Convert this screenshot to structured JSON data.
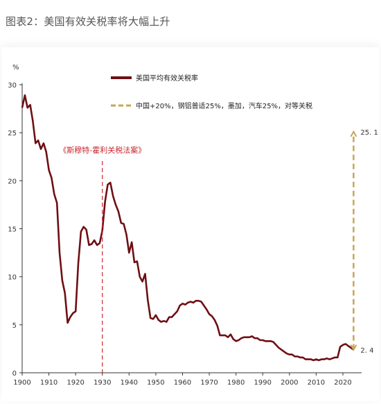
{
  "caption": "图表2：美国有效关税率将大幅上升",
  "chart_data": {
    "type": "line",
    "ylabel": "%",
    "xlim": [
      1900,
      2027
    ],
    "ylim": [
      0,
      30
    ],
    "x_ticks": [
      1900,
      1910,
      1920,
      1930,
      1940,
      1950,
      1960,
      1970,
      1980,
      1990,
      2000,
      2010,
      2020
    ],
    "y_ticks": [
      0,
      5,
      10,
      15,
      20,
      25,
      30
    ],
    "grid": false,
    "legend_position": "top-center",
    "series": [
      {
        "name": "美国平均有效关税率",
        "color": "#6e0f14",
        "style": "solid",
        "points": [
          [
            1900,
            27.6
          ],
          [
            1901,
            28.9
          ],
          [
            1902,
            27.6
          ],
          [
            1903,
            27.9
          ],
          [
            1904,
            26.2
          ],
          [
            1905,
            23.9
          ],
          [
            1906,
            24.2
          ],
          [
            1907,
            23.3
          ],
          [
            1908,
            23.9
          ],
          [
            1909,
            23.0
          ],
          [
            1910,
            21.1
          ],
          [
            1911,
            20.3
          ],
          [
            1912,
            18.6
          ],
          [
            1913,
            17.7
          ],
          [
            1914,
            12.5
          ],
          [
            1915,
            9.6
          ],
          [
            1916,
            8.3
          ],
          [
            1917,
            5.2
          ],
          [
            1918,
            5.8
          ],
          [
            1919,
            6.2
          ],
          [
            1920,
            6.4
          ],
          [
            1921,
            11.4
          ],
          [
            1922,
            14.7
          ],
          [
            1923,
            15.2
          ],
          [
            1924,
            14.9
          ],
          [
            1925,
            13.3
          ],
          [
            1926,
            13.4
          ],
          [
            1927,
            13.8
          ],
          [
            1928,
            13.3
          ],
          [
            1929,
            13.5
          ],
          [
            1930,
            14.8
          ],
          [
            1931,
            17.8
          ],
          [
            1932,
            19.6
          ],
          [
            1933,
            19.8
          ],
          [
            1934,
            18.4
          ],
          [
            1935,
            17.5
          ],
          [
            1936,
            16.8
          ],
          [
            1937,
            15.6
          ],
          [
            1938,
            15.5
          ],
          [
            1939,
            14.4
          ],
          [
            1940,
            12.5
          ],
          [
            1941,
            13.6
          ],
          [
            1942,
            11.5
          ],
          [
            1943,
            11.6
          ],
          [
            1944,
            10.0
          ],
          [
            1945,
            9.5
          ],
          [
            1946,
            10.3
          ],
          [
            1947,
            7.6
          ],
          [
            1948,
            5.7
          ],
          [
            1949,
            5.6
          ],
          [
            1950,
            6.0
          ],
          [
            1951,
            5.5
          ],
          [
            1952,
            5.3
          ],
          [
            1953,
            5.4
          ],
          [
            1954,
            5.3
          ],
          [
            1955,
            5.8
          ],
          [
            1956,
            5.8
          ],
          [
            1957,
            6.1
          ],
          [
            1958,
            6.4
          ],
          [
            1959,
            7.0
          ],
          [
            1960,
            7.2
          ],
          [
            1961,
            7.1
          ],
          [
            1962,
            7.3
          ],
          [
            1963,
            7.4
          ],
          [
            1964,
            7.3
          ],
          [
            1965,
            7.5
          ],
          [
            1966,
            7.5
          ],
          [
            1967,
            7.4
          ],
          [
            1968,
            7.0
          ],
          [
            1969,
            6.6
          ],
          [
            1970,
            6.1
          ],
          [
            1971,
            5.9
          ],
          [
            1972,
            5.5
          ],
          [
            1973,
            4.9
          ],
          [
            1974,
            3.9
          ],
          [
            1975,
            3.9
          ],
          [
            1976,
            3.9
          ],
          [
            1977,
            3.7
          ],
          [
            1978,
            4.0
          ],
          [
            1979,
            3.5
          ],
          [
            1980,
            3.3
          ],
          [
            1981,
            3.4
          ],
          [
            1982,
            3.6
          ],
          [
            1983,
            3.7
          ],
          [
            1984,
            3.7
          ],
          [
            1985,
            3.7
          ],
          [
            1986,
            3.8
          ],
          [
            1987,
            3.6
          ],
          [
            1988,
            3.6
          ],
          [
            1989,
            3.4
          ],
          [
            1990,
            3.4
          ],
          [
            1991,
            3.3
          ],
          [
            1992,
            3.3
          ],
          [
            1993,
            3.3
          ],
          [
            1994,
            3.2
          ],
          [
            1995,
            2.9
          ],
          [
            1996,
            2.6
          ],
          [
            1997,
            2.4
          ],
          [
            1998,
            2.2
          ],
          [
            1999,
            2.0
          ],
          [
            2000,
            1.9
          ],
          [
            2001,
            1.9
          ],
          [
            2002,
            1.7
          ],
          [
            2003,
            1.7
          ],
          [
            2004,
            1.6
          ],
          [
            2005,
            1.6
          ],
          [
            2006,
            1.4
          ],
          [
            2007,
            1.4
          ],
          [
            2008,
            1.4
          ],
          [
            2009,
            1.3
          ],
          [
            2010,
            1.4
          ],
          [
            2011,
            1.3
          ],
          [
            2012,
            1.4
          ],
          [
            2013,
            1.4
          ],
          [
            2014,
            1.5
          ],
          [
            2015,
            1.4
          ],
          [
            2016,
            1.5
          ],
          [
            2017,
            1.6
          ],
          [
            2018,
            1.6
          ],
          [
            2019,
            2.7
          ],
          [
            2020,
            2.9
          ],
          [
            2021,
            3.0
          ],
          [
            2022,
            2.8
          ],
          [
            2023,
            2.6
          ],
          [
            2024,
            2.4
          ]
        ]
      },
      {
        "name": "中国+20%，钢铝普适25%，墨加，汽车25%，对等关税",
        "color": "#c9a456",
        "style": "dashed",
        "points": [
          [
            2024,
            2.4
          ],
          [
            2024,
            25.1
          ]
        ]
      }
    ],
    "annotations": [
      {
        "text": "《斯穆特-霍利关税法案》",
        "x": 1930,
        "color": "#c8262e",
        "type": "vertical-dashed-line"
      },
      {
        "text": "25. 1",
        "x": 2024,
        "y": 25.1
      },
      {
        "text": "2. 4",
        "x": 2024,
        "y": 2.4
      }
    ]
  }
}
